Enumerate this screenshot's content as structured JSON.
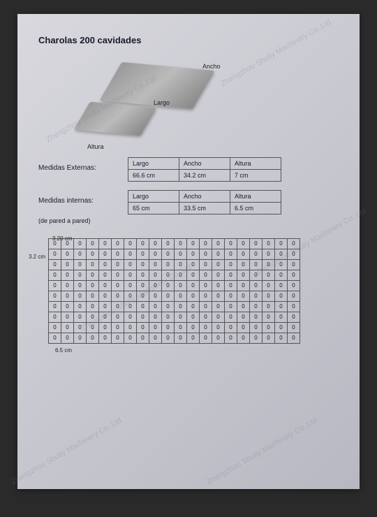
{
  "title": "Charolas 200 cavidades",
  "diagram": {
    "label_ancho": "Ancho",
    "label_largo": "Largo",
    "label_altura": "Altura"
  },
  "tables": {
    "externas": {
      "label": "Medidas Externas:",
      "headers": [
        "Largo",
        "Ancho",
        "Altura"
      ],
      "values": [
        "66.6 cm",
        "34.2 cm",
        "7 cm"
      ]
    },
    "internas": {
      "label": "Medidas internas:",
      "sublabel": "(de pared a pared)",
      "headers": [
        "Largo",
        "Ancho",
        "Altura"
      ],
      "values": [
        "65 cm",
        "33.5 cm",
        "6.5 cm"
      ]
    }
  },
  "grid": {
    "top_label": "3.20 cm",
    "left_label": "3.2 cm",
    "bottom_label": "6.5 cm",
    "rows": 10,
    "cols": 20,
    "cell_content": "0"
  },
  "watermark_text": "Zhengzhou Shuliy Machinery Co.,Ltd",
  "styling": {
    "page_bg_gradient": [
      "#d8d8de",
      "#c8c8d0",
      "#b8b8c2"
    ],
    "title_color": "#1a1a2a",
    "title_fontsize": 13,
    "table_border_color": "#555555",
    "table_fontsize": 9,
    "grid_cell_width": 17,
    "grid_cell_height": 14,
    "grid_fontsize": 8,
    "tray_colors": [
      "#999999",
      "#bbbbbb",
      "#888888"
    ],
    "watermark_color": "rgba(120,120,140,0.25)",
    "watermark_angle": -30
  }
}
